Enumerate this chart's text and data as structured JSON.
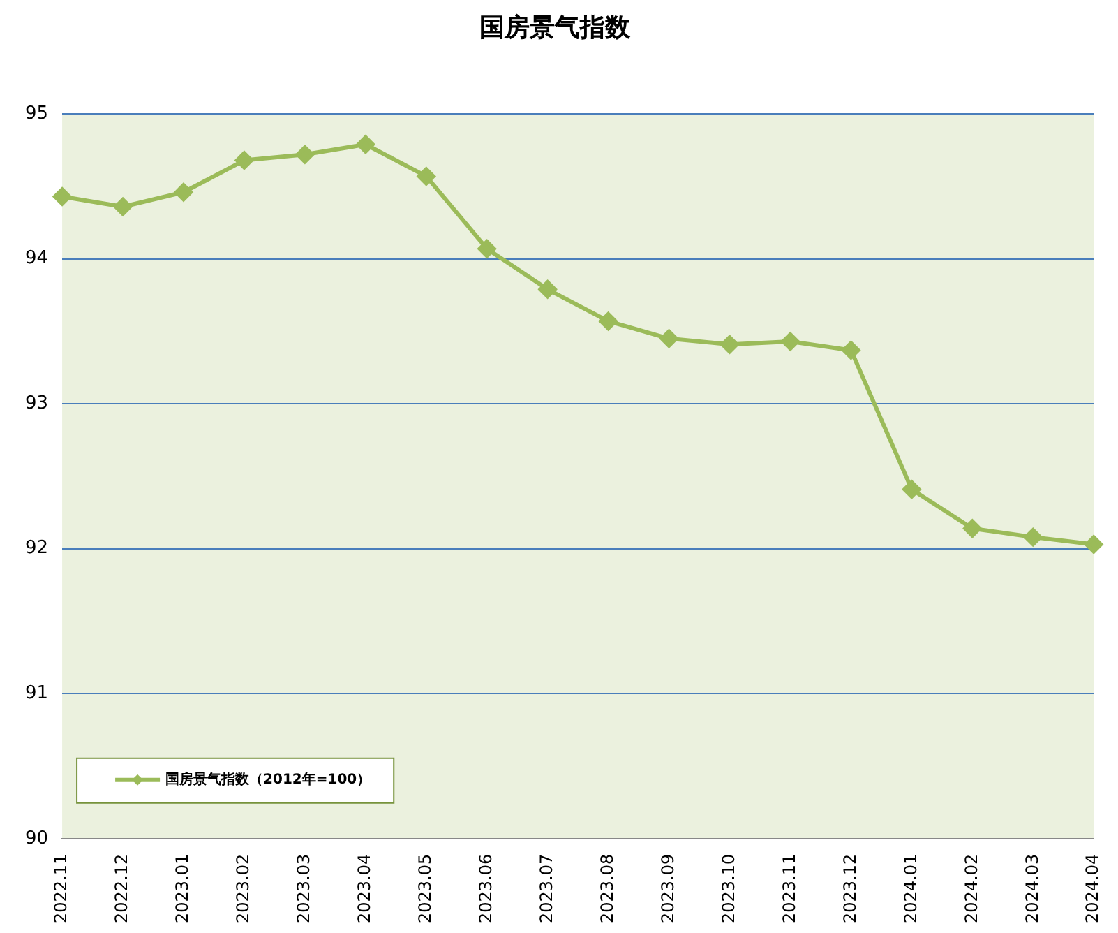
{
  "chart_data": {
    "type": "line",
    "title": "国房景气指数",
    "categories": [
      "2022.11",
      "2022.12",
      "2023.01",
      "2023.02",
      "2023.03",
      "2023.04",
      "2023.05",
      "2023.06",
      "2023.07",
      "2023.08",
      "2023.09",
      "2023.10",
      "2023.11",
      "2023.12",
      "2024.01",
      "2024.02",
      "2024.03",
      "2024.04"
    ],
    "series": [
      {
        "name": "国房景气指数（2012年=100）",
        "color": "#9bbb59",
        "values": [
          94.43,
          94.36,
          94.46,
          94.68,
          94.72,
          94.79,
          94.57,
          94.07,
          93.79,
          93.57,
          93.45,
          93.41,
          93.43,
          93.37,
          92.41,
          92.14,
          92.08,
          92.03
        ]
      }
    ],
    "ylim": [
      90,
      95
    ],
    "yticks": [
      90,
      91,
      92,
      93,
      94,
      95
    ],
    "grid": "y",
    "legend": "bottom left",
    "marker": "diamond",
    "line_style": "solid"
  }
}
